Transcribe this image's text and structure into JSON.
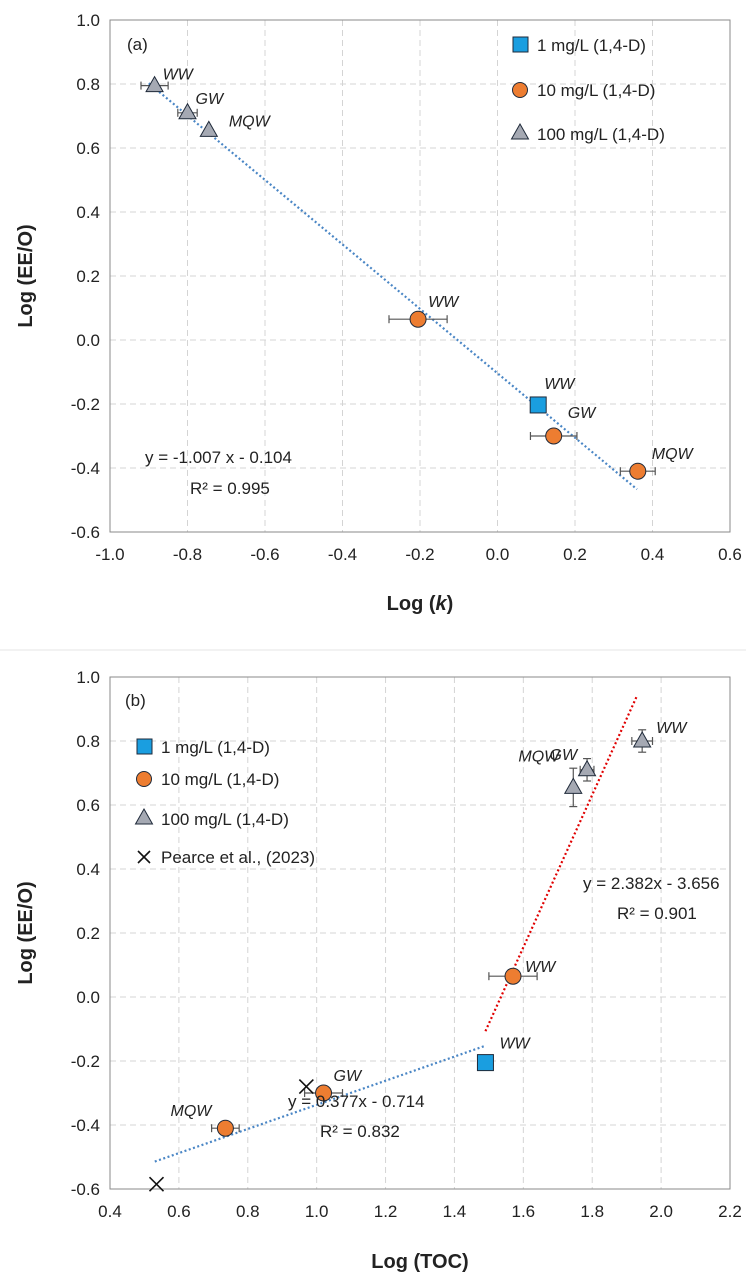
{
  "colors": {
    "series_1mg": "#1a9ee0",
    "series_10mg": "#ed7d31",
    "series_100mg": "#a5a9b3",
    "fit_blue": "#4a86c5",
    "fit_red": "#e00000",
    "pearce": "#111111"
  },
  "chart_data": [
    {
      "type": "scatter",
      "panel_label": "(a)",
      "xlabel_prefix": "Log (",
      "xlabel_var": "k",
      "xlabel_suffix": ")",
      "ylabel": "Log (EE/O)",
      "xlim": [
        -1.0,
        0.6
      ],
      "ylim": [
        -0.6,
        1.0
      ],
      "xticks": [
        -1.0,
        -0.8,
        -0.6,
        -0.4,
        -0.2,
        0.0,
        0.2,
        0.4,
        0.6
      ],
      "yticks": [
        -0.6,
        -0.4,
        -0.2,
        0.0,
        0.2,
        0.4,
        0.6,
        0.8,
        1.0
      ],
      "xtick_labels": [
        "-1.0",
        "-0.8",
        "-0.6",
        "-0.4",
        "-0.2",
        "0.0",
        "0.2",
        "0.4",
        "0.6"
      ],
      "ytick_labels": [
        "-0.6",
        "-0.4",
        "-0.2",
        "0.0",
        "0.2",
        "0.4",
        "0.6",
        "0.8",
        "1.0"
      ],
      "grid": true,
      "legend_position": "top-right",
      "series": [
        {
          "name": "1 mg/L (1,4-D)",
          "marker": "square",
          "color_key": "series_1mg",
          "points": [
            {
              "x": 0.105,
              "y": -0.203,
              "label": "WW"
            }
          ]
        },
        {
          "name": "10 mg/L (1,4-D)",
          "marker": "circle",
          "color_key": "series_10mg",
          "points": [
            {
              "x": -0.205,
              "y": 0.065,
              "label": "WW",
              "xerr": 0.075
            },
            {
              "x": 0.145,
              "y": -0.3,
              "label": "GW",
              "xerr": 0.06
            },
            {
              "x": 0.362,
              "y": -0.41,
              "label": "MQW",
              "xerr": 0.045
            }
          ]
        },
        {
          "name": "100 mg/L (1,4-D)",
          "marker": "triangle",
          "color_key": "series_100mg",
          "points": [
            {
              "x": -0.885,
              "y": 0.795,
              "label": "WW",
              "xerr": 0.035
            },
            {
              "x": -0.8,
              "y": 0.71,
              "label": "GW",
              "xerr": 0.025
            },
            {
              "x": -0.745,
              "y": 0.655,
              "label": "MQW"
            }
          ]
        }
      ],
      "fits": [
        {
          "slope": -1.007,
          "intercept": -0.104,
          "x_range": [
            -0.9,
            0.36
          ],
          "color_key": "fit_blue",
          "equation": "y = -1.007 x - 0.104",
          "r2": "R² = 0.995"
        }
      ]
    },
    {
      "type": "scatter",
      "panel_label": "(b)",
      "xlabel": "Log (TOC)",
      "ylabel": "Log (EE/O)",
      "xlim": [
        0.4,
        2.2
      ],
      "ylim": [
        -0.6,
        1.0
      ],
      "xticks": [
        0.4,
        0.6,
        0.8,
        1.0,
        1.2,
        1.4,
        1.6,
        1.8,
        2.0,
        2.2
      ],
      "yticks": [
        -0.6,
        -0.4,
        -0.2,
        0.0,
        0.2,
        0.4,
        0.6,
        0.8,
        1.0
      ],
      "xtick_labels": [
        "0.4",
        "0.6",
        "0.8",
        "1.0",
        "1.2",
        "1.4",
        "1.6",
        "1.8",
        "2.0",
        "2.2"
      ],
      "ytick_labels": [
        "-0.6",
        "-0.4",
        "-0.2",
        "0.0",
        "0.2",
        "0.4",
        "0.6",
        "0.8",
        "1.0"
      ],
      "grid": true,
      "legend_position": "top-left",
      "series": [
        {
          "name": "1 mg/L (1,4-D)",
          "marker": "square",
          "color_key": "series_1mg",
          "points": [
            {
              "x": 1.49,
              "y": -0.205,
              "label": "WW"
            }
          ]
        },
        {
          "name": "10 mg/L (1,4-D)",
          "marker": "circle",
          "color_key": "series_10mg",
          "points": [
            {
              "x": 0.735,
              "y": -0.41,
              "label": "MQW",
              "xerr": 0.04
            },
            {
              "x": 1.02,
              "y": -0.3,
              "label": "GW",
              "xerr": 0.055
            },
            {
              "x": 1.57,
              "y": 0.065,
              "label": "WW",
              "xerr": 0.07
            }
          ]
        },
        {
          "name": "100 mg/L (1,4-D)",
          "marker": "triangle",
          "color_key": "series_100mg",
          "points": [
            {
              "x": 1.745,
              "y": 0.655,
              "label": "MQW",
              "yerr": 0.06
            },
            {
              "x": 1.785,
              "y": 0.71,
              "label": "GW",
              "yerr": 0.035,
              "xerr": 0.02
            },
            {
              "x": 1.945,
              "y": 0.8,
              "label": "WW",
              "yerr": 0.035,
              "xerr": 0.03
            }
          ]
        },
        {
          "name": "Pearce et al., (2023)",
          "marker": "x",
          "color_key": "pearce",
          "points": [
            {
              "x": 0.97,
              "y": -0.28
            },
            {
              "x": 0.535,
              "y": -0.585
            }
          ]
        }
      ],
      "fits": [
        {
          "slope": 0.377,
          "intercept": -0.714,
          "x_range": [
            0.53,
            1.49
          ],
          "color_key": "fit_blue",
          "equation": "y = 0.377x - 0.714",
          "r2": "R² = 0.832"
        },
        {
          "slope": 2.382,
          "intercept": -3.656,
          "x_range": [
            1.49,
            1.93
          ],
          "color_key": "fit_red",
          "equation": "y = 2.382x - 3.656",
          "r2": "R² = 0.901"
        }
      ]
    }
  ]
}
